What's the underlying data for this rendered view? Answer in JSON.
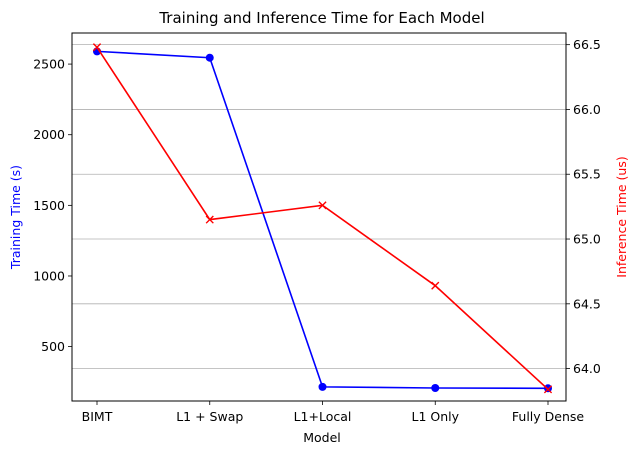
{
  "chart_data": {
    "type": "line",
    "title": "Training and Inference Time for Each Model",
    "xlabel": "Model",
    "categories": [
      "BIMT",
      "L1 + Swap",
      "L1+Local",
      "L1 Only",
      "Fully Dense"
    ],
    "grid": "horizontal, right axis",
    "series": [
      {
        "axis": "left",
        "ylabel": "Training Time (s)",
        "color": "#0000ff",
        "marker": "circle",
        "values": [
          2590,
          2545,
          215,
          207,
          205
        ],
        "ylim": [
          115,
          2720
        ],
        "yticks": [
          500,
          1000,
          1500,
          2000,
          2500
        ]
      },
      {
        "axis": "right",
        "ylabel": "Inference Time (us)",
        "color": "#ff0000",
        "marker": "x",
        "values": [
          66.48,
          65.15,
          65.26,
          64.64,
          63.84
        ],
        "ylim": [
          63.75,
          66.59
        ],
        "yticks": [
          64.0,
          64.5,
          65.0,
          65.5,
          66.0,
          66.5
        ]
      }
    ]
  }
}
